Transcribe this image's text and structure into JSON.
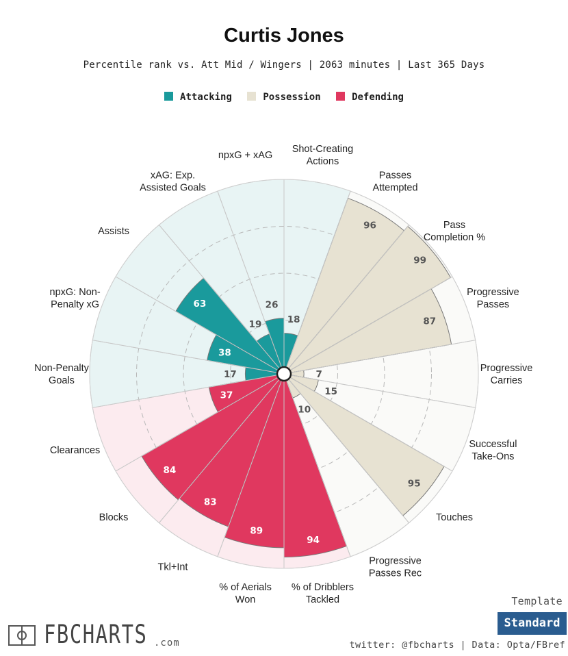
{
  "header": {
    "title": "Curtis Jones",
    "subtitle": "Percentile rank vs. Att Mid / Wingers | 2063 minutes | Last 365 Days"
  },
  "legend": [
    {
      "label": "Attacking",
      "color": "#1a9a9c"
    },
    {
      "label": "Possession",
      "color": "#e7e2d2"
    },
    {
      "label": "Defending",
      "color": "#e0385f"
    }
  ],
  "colors": {
    "Attacking": {
      "fill": "#1a9a9c",
      "bg": "#e8f4f4",
      "text": "#ffffff",
      "bar_text": "#ffffff"
    },
    "Possession": {
      "fill": "#e7e2d2",
      "bg": "#fafaf8",
      "text": "#555555",
      "bar_text": "#555555"
    },
    "Defending": {
      "fill": "#e0385f",
      "bg": "#fcebef",
      "text": "#ffffff",
      "bar_text": "#ffffff"
    },
    "outside_text": "#555555",
    "edge": "#9a9a9a",
    "ring": "#b8b8b8"
  },
  "chart_data": {
    "type": "polar-bar",
    "title": "Curtis Jones",
    "subtitle": "Percentile rank vs. Att Mid / Wingers | 2063 minutes | Last 365 Days",
    "rlim": [
      0,
      100
    ],
    "rings": [
      25,
      50,
      75
    ],
    "categories": [
      {
        "label": "Shot-Creating\nActions",
        "value": 18,
        "group": "Attacking"
      },
      {
        "label": "Passes\nAttempted",
        "value": 96,
        "group": "Possession"
      },
      {
        "label": "Pass\nCompletion %",
        "value": 99,
        "group": "Possession"
      },
      {
        "label": "Progressive\nPasses",
        "value": 87,
        "group": "Possession"
      },
      {
        "label": "Progressive\nCarries",
        "value": 7,
        "group": "Possession"
      },
      {
        "label": "Successful\nTake-Ons",
        "value": 15,
        "group": "Possession"
      },
      {
        "label": "Touches",
        "value": 95,
        "group": "Possession"
      },
      {
        "label": "Progressive\nPasses Rec",
        "value": 10,
        "group": "Possession"
      },
      {
        "label": "% of Dribblers\nTackled",
        "value": 94,
        "group": "Defending"
      },
      {
        "label": "% of Aerials\nWon",
        "value": 89,
        "group": "Defending"
      },
      {
        "label": "Tkl+Int",
        "value": 83,
        "group": "Defending"
      },
      {
        "label": "Blocks",
        "value": 84,
        "group": "Defending"
      },
      {
        "label": "Clearances",
        "value": 37,
        "group": "Defending"
      },
      {
        "label": "Non-Penalty\nGoals",
        "value": 17,
        "group": "Attacking"
      },
      {
        "label": "npxG: Non-\nPenalty xG",
        "value": 38,
        "group": "Attacking"
      },
      {
        "label": "Assists",
        "value": 63,
        "group": "Attacking"
      },
      {
        "label": "xAG: Exp.\nAssisted Goals",
        "value": 19,
        "group": "Attacking"
      },
      {
        "label": "npxG + xAG",
        "value": 26,
        "group": "Attacking"
      }
    ]
  },
  "footer": {
    "logo_text": "FBCHARTS",
    "logo_suffix": ".com",
    "template_label": "Template",
    "template_value": "Standard",
    "credits": "twitter: @fbcharts | Data: Opta/FBref"
  }
}
